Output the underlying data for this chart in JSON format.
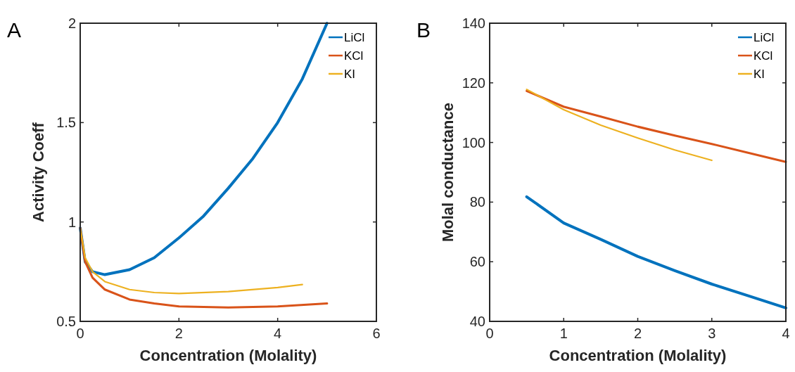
{
  "chart_data": [
    {
      "type": "line",
      "annotations": [
        "A"
      ],
      "xlabel": "Concentration (Molality)",
      "ylabel": "Activity Coeff",
      "xlim": [
        0,
        6
      ],
      "xticks": [
        0,
        2,
        4,
        6
      ],
      "ylim": [
        0.5,
        2
      ],
      "yticks": [
        0.5,
        1,
        1.5,
        2
      ],
      "legend": "top right",
      "grid": false,
      "line_style": "solid",
      "series": [
        {
          "name": "LiCl",
          "color": "#0072bd",
          "x": [
            0,
            0.1,
            0.25,
            0.5,
            1,
            1.5,
            2,
            2.5,
            3,
            3.5,
            4,
            4.5,
            5
          ],
          "values": [
            0.97,
            0.8,
            0.75,
            0.735,
            0.76,
            0.82,
            0.92,
            1.03,
            1.17,
            1.32,
            1.5,
            1.72,
            2
          ]
        },
        {
          "name": "KCl",
          "color": "#d95319",
          "x": [
            0,
            0.1,
            0.25,
            0.5,
            1,
            1.5,
            2,
            3,
            4,
            5
          ],
          "values": [
            0.97,
            0.8,
            0.72,
            0.66,
            0.61,
            0.59,
            0.575,
            0.57,
            0.575,
            0.59
          ]
        },
        {
          "name": "KI",
          "color": "#edb120",
          "x": [
            0,
            0.1,
            0.25,
            0.5,
            1,
            1.5,
            2,
            3,
            4,
            4.5
          ],
          "values": [
            0.97,
            0.82,
            0.75,
            0.7,
            0.66,
            0.645,
            0.64,
            0.65,
            0.67,
            0.685
          ]
        }
      ]
    },
    {
      "type": "line",
      "annotations": [
        "B"
      ],
      "xlabel": "Concentration (Molality)",
      "ylabel": "Molal conductance",
      "xlim": [
        0,
        4
      ],
      "xticks": [
        0,
        1,
        2,
        3,
        4
      ],
      "ylim": [
        40,
        140
      ],
      "yticks": [
        40,
        60,
        80,
        100,
        120,
        140
      ],
      "legend": "top right",
      "grid": false,
      "line_style": "solid",
      "series": [
        {
          "name": "LiCl",
          "color": "#0072bd",
          "x": [
            0.5,
            1,
            1.5,
            2,
            2.5,
            3,
            3.5,
            4
          ],
          "values": [
            81.8,
            73,
            67.5,
            61.8,
            57,
            52.5,
            48.5,
            44.5
          ]
        },
        {
          "name": "KCl",
          "color": "#d95319",
          "x": [
            0.5,
            1,
            1.5,
            2,
            2.5,
            3,
            3.5,
            4
          ],
          "values": [
            117.3,
            112,
            108.7,
            105.3,
            102.3,
            99.5,
            96.5,
            93.5
          ]
        },
        {
          "name": "KI",
          "color": "#edb120",
          "x": [
            0.5,
            1,
            1.5,
            2,
            2.5,
            3
          ],
          "values": [
            117.8,
            111,
            105.8,
            101.5,
            97.5,
            94
          ]
        }
      ]
    }
  ]
}
